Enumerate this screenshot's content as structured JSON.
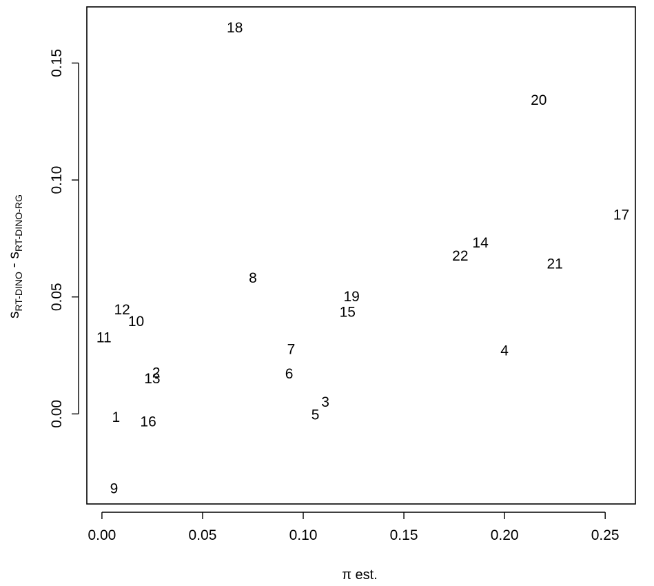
{
  "chart_data": {
    "type": "scatter",
    "marker": "text-labels",
    "xlabel": "π est.",
    "ylabel": {
      "part1": "s",
      "sub1": "RT-DINO",
      "sep": " - ",
      "part2": "s",
      "sub2": "RT-DINO-RG"
    },
    "xlim": [
      -0.0075,
      0.265
    ],
    "ylim": [
      -0.0385,
      0.174
    ],
    "x_ticks": [
      0.0,
      0.05,
      0.1,
      0.15,
      0.2,
      0.25
    ],
    "x_tick_labels": [
      "0.00",
      "0.05",
      "0.10",
      "0.15",
      "0.20",
      "0.25"
    ],
    "y_ticks": [
      0.0,
      0.05,
      0.1,
      0.15
    ],
    "y_tick_labels": [
      "0.00",
      "0.05",
      "0.10",
      "0.15"
    ],
    "grid": false,
    "legend": "none",
    "points": [
      {
        "label": "1",
        "x": 0.007,
        "y": -0.0015
      },
      {
        "label": "2",
        "x": 0.027,
        "y": 0.0175
      },
      {
        "label": "3",
        "x": 0.111,
        "y": 0.005
      },
      {
        "label": "4",
        "x": 0.2,
        "y": 0.027
      },
      {
        "label": "5",
        "x": 0.106,
        "y": -0.0005
      },
      {
        "label": "6",
        "x": 0.093,
        "y": 0.017
      },
      {
        "label": "7",
        "x": 0.094,
        "y": 0.0275
      },
      {
        "label": "8",
        "x": 0.075,
        "y": 0.058
      },
      {
        "label": "9",
        "x": 0.006,
        "y": -0.032
      },
      {
        "label": "10",
        "x": 0.017,
        "y": 0.0395
      },
      {
        "label": "11",
        "x": 0.001,
        "y": 0.0325
      },
      {
        "label": "12",
        "x": 0.01,
        "y": 0.0445
      },
      {
        "label": "13",
        "x": 0.025,
        "y": 0.015
      },
      {
        "label": "14",
        "x": 0.188,
        "y": 0.073
      },
      {
        "label": "15",
        "x": 0.122,
        "y": 0.0435
      },
      {
        "label": "16",
        "x": 0.023,
        "y": -0.0035
      },
      {
        "label": "17",
        "x": 0.258,
        "y": 0.085
      },
      {
        "label": "18",
        "x": 0.066,
        "y": 0.165
      },
      {
        "label": "19",
        "x": 0.124,
        "y": 0.05
      },
      {
        "label": "20",
        "x": 0.217,
        "y": 0.134
      },
      {
        "label": "21",
        "x": 0.225,
        "y": 0.064
      },
      {
        "label": "22",
        "x": 0.178,
        "y": 0.0675
      }
    ]
  }
}
